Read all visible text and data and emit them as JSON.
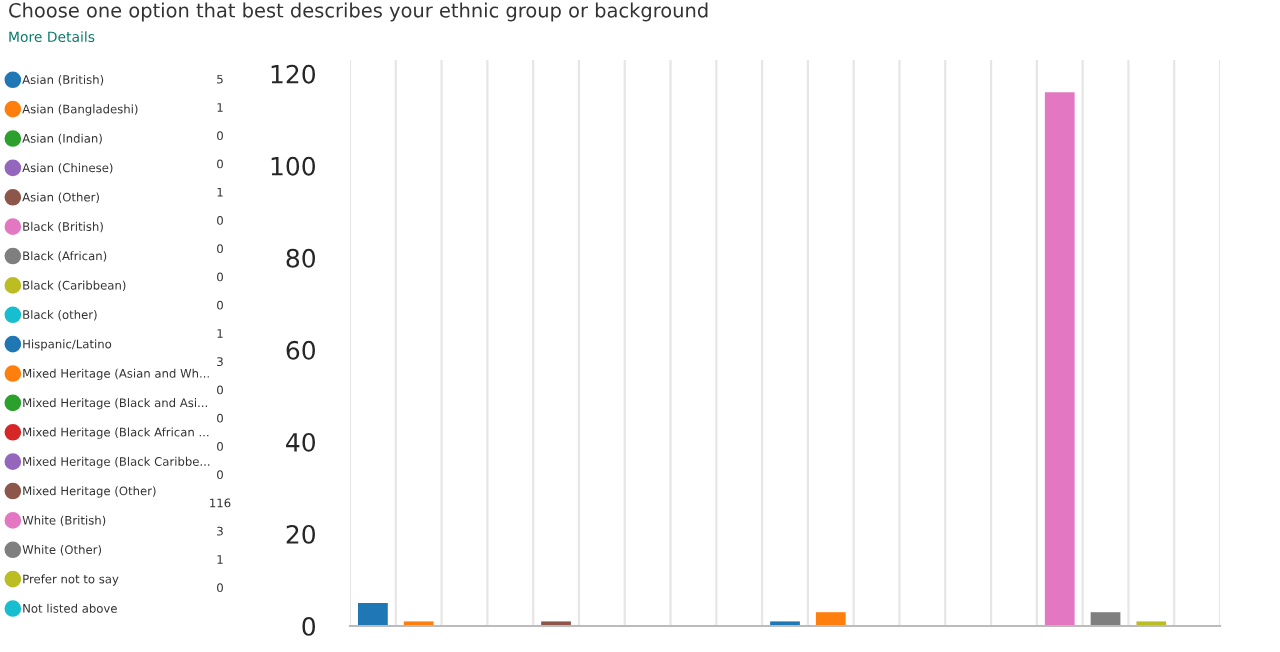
{
  "chart_data": {
    "type": "bar",
    "title": "Choose one option that best describes your ethnic group or background",
    "annotations": [
      "More Details",
      "5",
      "1",
      "0",
      "0",
      "1",
      "0",
      "0",
      "0",
      "0",
      "1",
      "3",
      "0",
      "0",
      "0",
      "0",
      "116",
      "3",
      "1",
      "0"
    ],
    "categories": [
      null,
      null,
      null,
      null,
      null,
      null,
      null,
      null,
      null,
      null,
      null,
      null,
      null,
      null,
      null,
      null,
      null,
      null,
      null
    ],
    "series": [
      {
        "name": "Asian (British)",
        "color": "#1f77b4",
        "values": [
          5,
          null,
          null,
          null,
          null,
          null,
          null,
          null,
          null,
          null,
          null,
          null,
          null,
          null,
          null,
          null,
          null,
          null,
          null
        ]
      },
      {
        "name": "Asian (Bangladeshi)",
        "color": "#ff7f0e",
        "values": [
          null,
          1,
          null,
          null,
          null,
          null,
          null,
          null,
          null,
          null,
          null,
          null,
          null,
          null,
          null,
          null,
          null,
          null,
          null
        ]
      },
      {
        "name": "Asian (Indian)",
        "color": "#2ca02c",
        "values": [
          null,
          null,
          0,
          null,
          null,
          null,
          null,
          null,
          null,
          null,
          null,
          null,
          null,
          null,
          null,
          null,
          null,
          null,
          null
        ]
      },
      {
        "name": "Asian (Chinese)",
        "color": "#9467bd",
        "values": [
          null,
          null,
          null,
          0,
          null,
          null,
          null,
          null,
          null,
          null,
          null,
          null,
          null,
          null,
          null,
          null,
          null,
          null,
          null
        ]
      },
      {
        "name": "Asian (Other)",
        "color": "#8c564b",
        "values": [
          null,
          null,
          null,
          null,
          1,
          null,
          null,
          null,
          null,
          null,
          null,
          null,
          null,
          null,
          null,
          null,
          null,
          null,
          null
        ]
      },
      {
        "name": "Black (British)",
        "color": "#e377c2",
        "values": [
          null,
          null,
          null,
          null,
          null,
          0,
          null,
          null,
          null,
          null,
          null,
          null,
          null,
          null,
          null,
          null,
          null,
          null,
          null
        ]
      },
      {
        "name": "Black (African)",
        "color": "#7f7f7f",
        "values": [
          null,
          null,
          null,
          null,
          null,
          null,
          0,
          null,
          null,
          null,
          null,
          null,
          null,
          null,
          null,
          null,
          null,
          null,
          null
        ]
      },
      {
        "name": "Black (Caribbean)",
        "color": "#bcbd22",
        "values": [
          null,
          null,
          null,
          null,
          null,
          null,
          null,
          0,
          null,
          null,
          null,
          null,
          null,
          null,
          null,
          null,
          null,
          null,
          null
        ]
      },
      {
        "name": "Black (other)",
        "color": "#17becf",
        "values": [
          null,
          null,
          null,
          null,
          null,
          null,
          null,
          null,
          0,
          null,
          null,
          null,
          null,
          null,
          null,
          null,
          null,
          null,
          null
        ]
      },
      {
        "name": "Hispanic/Latino",
        "color": "#1f77b4",
        "values": [
          null,
          null,
          null,
          null,
          null,
          null,
          null,
          null,
          null,
          1,
          null,
          null,
          null,
          null,
          null,
          null,
          null,
          null,
          null
        ]
      },
      {
        "name": "Mixed Heritage (Asian and Wh...",
        "color": "#ff7f0e",
        "values": [
          null,
          null,
          null,
          null,
          null,
          null,
          null,
          null,
          null,
          null,
          3,
          null,
          null,
          null,
          null,
          null,
          null,
          null,
          null
        ]
      },
      {
        "name": "Mixed Heritage (Black and Asi...",
        "color": "#2ca02c",
        "values": [
          null,
          null,
          null,
          null,
          null,
          null,
          null,
          null,
          null,
          null,
          null,
          0,
          null,
          null,
          null,
          null,
          null,
          null,
          null
        ]
      },
      {
        "name": "Mixed Heritage (Black African ...",
        "color": "#d62728",
        "values": [
          null,
          null,
          null,
          null,
          null,
          null,
          null,
          null,
          null,
          null,
          null,
          null,
          0,
          null,
          null,
          null,
          null,
          null,
          null
        ]
      },
      {
        "name": "Mixed Heritage (Black Caribbe...",
        "color": "#9467bd",
        "values": [
          null,
          null,
          null,
          null,
          null,
          null,
          null,
          null,
          null,
          null,
          null,
          null,
          null,
          0,
          null,
          null,
          null,
          null,
          null
        ]
      },
      {
        "name": "Mixed Heritage (Other)",
        "color": "#8c564b",
        "values": [
          null,
          null,
          null,
          null,
          null,
          null,
          null,
          null,
          null,
          null,
          null,
          null,
          null,
          null,
          0,
          null,
          null,
          null,
          null
        ]
      },
      {
        "name": "White (British)",
        "color": "#e377c2",
        "values": [
          null,
          null,
          null,
          null,
          null,
          null,
          null,
          null,
          null,
          null,
          null,
          null,
          null,
          null,
          null,
          116,
          null,
          null,
          null
        ]
      },
      {
        "name": "White (Other)",
        "color": "#7f7f7f",
        "values": [
          null,
          null,
          null,
          null,
          null,
          null,
          null,
          null,
          null,
          null,
          null,
          null,
          null,
          null,
          null,
          null,
          3,
          null,
          null
        ]
      },
      {
        "name": "Prefer not to say",
        "color": "#bcbd22",
        "values": [
          null,
          null,
          null,
          null,
          null,
          null,
          null,
          null,
          null,
          null,
          null,
          null,
          null,
          null,
          null,
          null,
          null,
          1,
          null
        ]
      },
      {
        "name": "Not listed above",
        "color": "#17becf",
        "values": [
          null,
          null,
          null,
          null,
          null,
          null,
          null,
          null,
          null,
          null,
          null,
          null,
          null,
          null,
          null,
          null,
          null,
          null,
          0
        ]
      }
    ],
    "ylim": [
      0,
      123
    ],
    "yticks": [
      0,
      20,
      40,
      60,
      80,
      100,
      120
    ],
    "grid": "x",
    "legend": "left"
  }
}
